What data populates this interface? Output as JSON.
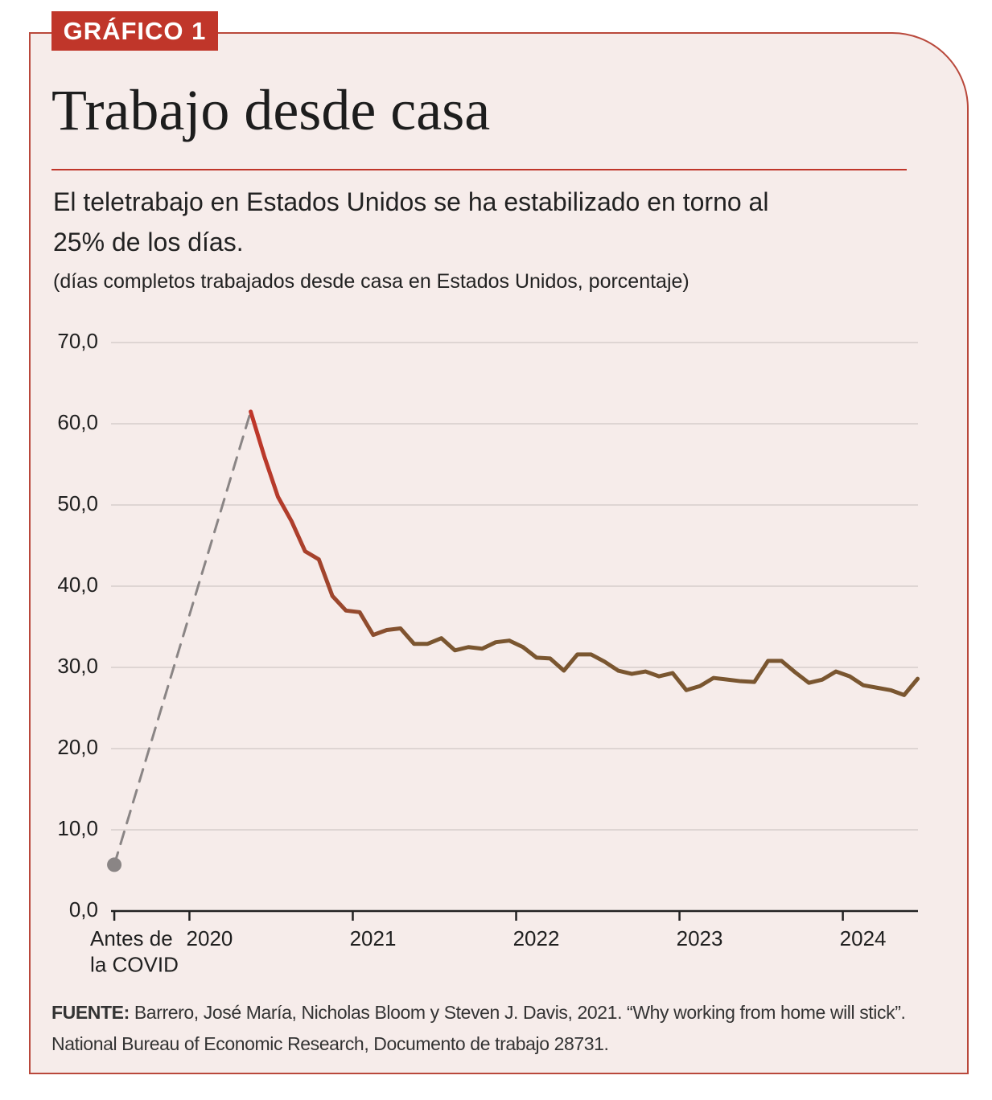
{
  "header": {
    "tag": "GRÁFICO 1",
    "title": "Trabajo desde casa",
    "subtitle": "El teletrabajo en Estados Unidos se ha estabilizado en torno al 25% de los días.",
    "note": "(días completos trabajados desde casa en Estados Unidos, porcentaje)"
  },
  "chart_data": {
    "type": "line",
    "xlim": [
      2019.52,
      2024.46
    ],
    "xticks": [
      {
        "value": 2019.54,
        "label": "Antes de\nla COVID"
      },
      2020,
      2021,
      2022,
      2023,
      2024
    ],
    "ylim": [
      0,
      70
    ],
    "yticks": [
      {
        "value": 0,
        "label": "0,0"
      },
      {
        "value": 10,
        "label": "10,0"
      },
      {
        "value": 20,
        "label": "20,0"
      },
      {
        "value": 30,
        "label": "30,0"
      },
      {
        "value": 40,
        "label": "40,0"
      },
      {
        "value": 50,
        "label": "50,0"
      },
      {
        "value": 60,
        "label": "60,0"
      },
      {
        "value": 70,
        "label": "70,0"
      }
    ],
    "grid": true,
    "series": [
      {
        "color": "#8a8585",
        "dashed": true,
        "start_marker": true,
        "x": [
          2019.54,
          2020.375
        ],
        "values": [
          5.7,
          61.5
        ]
      },
      {
        "color": "#c0362a",
        "color_end": "#7a5630",
        "x": [
          2020.375,
          2020.458,
          2020.542,
          2020.625,
          2020.708,
          2020.792,
          2020.875,
          2020.958,
          2021.042,
          2021.125,
          2021.208,
          2021.292,
          2021.375,
          2021.458,
          2021.542,
          2021.625,
          2021.708,
          2021.792,
          2021.875,
          2021.958,
          2022.042,
          2022.125,
          2022.208,
          2022.292,
          2022.375,
          2022.458,
          2022.542,
          2022.625,
          2022.708,
          2022.792,
          2022.875,
          2022.958,
          2023.042,
          2023.125,
          2023.208,
          2023.292,
          2023.375,
          2023.458,
          2023.542,
          2023.625,
          2023.708,
          2023.792,
          2023.875,
          2023.958,
          2024.042,
          2024.125,
          2024.208,
          2024.292,
          2024.375,
          2024.458
        ],
        "values": [
          61.5,
          56.0,
          51.0,
          48.0,
          44.3,
          43.3,
          38.8,
          37.0,
          36.8,
          34.0,
          34.6,
          34.8,
          32.9,
          32.9,
          33.6,
          32.1,
          32.5,
          32.3,
          33.1,
          33.3,
          32.5,
          31.2,
          31.1,
          29.6,
          31.6,
          31.6,
          30.7,
          29.6,
          29.2,
          29.5,
          28.9,
          29.3,
          27.2,
          27.7,
          28.7,
          28.5,
          28.3,
          28.2,
          30.8,
          30.8,
          29.4,
          28.1,
          28.5,
          29.5,
          28.9,
          27.8,
          27.5,
          27.2,
          26.6,
          28.6
        ]
      }
    ]
  },
  "footer": {
    "source_label": "FUENTE:",
    "source": "Barrero, José María, Nicholas Bloom y Steven J. Davis, 2021. “Why working from home will stick”. National Bureau of Economic Research, Documento de trabajo 28731."
  }
}
